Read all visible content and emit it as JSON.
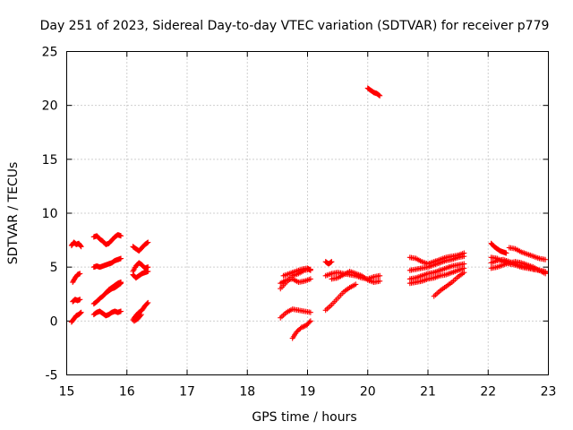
{
  "chart_data": {
    "type": "scatter",
    "title": "Day 251 of 2023, Sidereal Day-to-day VTEC variation (SDTVAR) for receiver p779",
    "xlabel": "GPS time / hours",
    "ylabel": "SDTVAR / TECUs",
    "xlim": [
      15,
      23
    ],
    "ylim": [
      -5,
      25
    ],
    "xticks": [
      "15",
      "16",
      "17",
      "18",
      "19",
      "20",
      "21",
      "22",
      "23"
    ],
    "yticks": [
      "-5",
      "0",
      "5",
      "10",
      "15",
      "20",
      "25"
    ],
    "grid": true,
    "marker": "plus",
    "color": "#ff0000",
    "segments": [
      {
        "x": [
          15.08,
          15.12,
          15.16,
          15.2,
          15.24
        ],
        "y": [
          7.0,
          7.3,
          7.1,
          7.2,
          6.9
        ]
      },
      {
        "x": [
          15.1,
          15.14,
          15.18,
          15.22
        ],
        "y": [
          3.6,
          4.0,
          4.3,
          4.4
        ]
      },
      {
        "x": [
          15.1,
          15.14,
          15.18,
          15.22
        ],
        "y": [
          1.8,
          2.0,
          1.9,
          2.0
        ]
      },
      {
        "x": [
          15.08,
          15.12,
          15.16,
          15.2,
          15.24
        ],
        "y": [
          -0.1,
          0.2,
          0.5,
          0.6,
          0.8
        ]
      },
      {
        "x": [
          15.45,
          15.5,
          15.55,
          15.6,
          15.65,
          15.7,
          15.75,
          15.8,
          15.85,
          15.9
        ],
        "y": [
          7.8,
          7.9,
          7.6,
          7.4,
          7.1,
          7.2,
          7.5,
          7.8,
          8.0,
          7.9
        ]
      },
      {
        "x": [
          15.45,
          15.5,
          15.55,
          15.6,
          15.65,
          15.7,
          15.75,
          15.8,
          15.85,
          15.9
        ],
        "y": [
          5.0,
          5.1,
          5.0,
          5.1,
          5.2,
          5.3,
          5.4,
          5.6,
          5.7,
          5.8
        ]
      },
      {
        "x": [
          15.45,
          15.5,
          15.55,
          15.6,
          15.65,
          15.7,
          15.75,
          15.8,
          15.85,
          15.9
        ],
        "y": [
          1.6,
          1.8,
          2.1,
          2.3,
          2.6,
          2.9,
          3.1,
          3.3,
          3.5,
          3.6
        ]
      },
      {
        "x": [
          15.65,
          15.7,
          15.75,
          15.8,
          15.85,
          15.9
        ],
        "y": [
          2.6,
          2.8,
          3.0,
          3.1,
          3.3,
          3.5
        ]
      },
      {
        "x": [
          15.45,
          15.5,
          15.55,
          15.6,
          15.65,
          15.7,
          15.75,
          15.8,
          15.85,
          15.9
        ],
        "y": [
          0.6,
          0.8,
          0.9,
          0.7,
          0.5,
          0.6,
          0.8,
          0.9,
          0.8,
          0.9
        ]
      },
      {
        "x": [
          16.1,
          16.15,
          16.2,
          16.25,
          16.3,
          16.35
        ],
        "y": [
          6.9,
          6.7,
          6.5,
          6.8,
          7.1,
          7.3
        ]
      },
      {
        "x": [
          16.1,
          16.15,
          16.2,
          16.25,
          16.3,
          16.35
        ],
        "y": [
          4.6,
          5.1,
          5.4,
          5.2,
          4.9,
          5.0
        ]
      },
      {
        "x": [
          16.1,
          16.15,
          16.2,
          16.25,
          16.3,
          16.35
        ],
        "y": [
          4.3,
          4.0,
          4.2,
          4.4,
          4.5,
          4.6
        ]
      },
      {
        "x": [
          16.1,
          16.15,
          16.2,
          16.25,
          16.3,
          16.35
        ],
        "y": [
          0.1,
          0.5,
          0.8,
          1.0,
          1.4,
          1.7
        ]
      },
      {
        "x": [
          16.12,
          16.18,
          16.24
        ],
        "y": [
          0.0,
          0.2,
          0.6
        ]
      },
      {
        "x": [
          18.55,
          18.65,
          18.75,
          18.85,
          18.95,
          19.05
        ],
        "y": [
          3.0,
          3.6,
          4.2,
          4.4,
          4.7,
          4.8
        ]
      },
      {
        "x": [
          18.55,
          18.65,
          18.75,
          18.85,
          18.95,
          19.05
        ],
        "y": [
          3.5,
          3.8,
          3.9,
          3.6,
          3.7,
          3.9
        ]
      },
      {
        "x": [
          18.6,
          18.7,
          18.8,
          18.9,
          19.0,
          19.05
        ],
        "y": [
          4.2,
          4.4,
          4.6,
          4.8,
          4.9,
          4.7
        ]
      },
      {
        "x": [
          18.55,
          18.65,
          18.75,
          18.85,
          18.95,
          19.05
        ],
        "y": [
          0.3,
          0.8,
          1.1,
          1.0,
          0.9,
          0.8
        ]
      },
      {
        "x": [
          18.75,
          18.82,
          18.9,
          18.98,
          19.05
        ],
        "y": [
          -1.6,
          -1.0,
          -0.6,
          -0.4,
          0.0
        ]
      },
      {
        "x": [
          19.3,
          19.35,
          19.4
        ],
        "y": [
          5.5,
          5.3,
          5.5
        ]
      },
      {
        "x": [
          19.3,
          19.4,
          19.5,
          19.6,
          19.7,
          19.8,
          19.9,
          20.0,
          20.1,
          20.2
        ],
        "y": [
          4.2,
          4.4,
          4.5,
          4.4,
          4.3,
          4.2,
          4.0,
          3.9,
          4.1,
          4.2
        ]
      },
      {
        "x": [
          19.4,
          19.5,
          19.6,
          19.7,
          19.8,
          19.9,
          20.0,
          20.1,
          20.2
        ],
        "y": [
          3.9,
          4.0,
          4.3,
          4.6,
          4.4,
          4.2,
          3.8,
          3.6,
          3.7
        ]
      },
      {
        "x": [
          19.3,
          19.4,
          19.5,
          19.6,
          19.7,
          19.8
        ],
        "y": [
          1.0,
          1.5,
          2.1,
          2.7,
          3.1,
          3.4
        ]
      },
      {
        "x": [
          20.0,
          20.05,
          20.1,
          20.15,
          20.2
        ],
        "y": [
          21.6,
          21.4,
          21.2,
          21.1,
          20.9
        ]
      },
      {
        "x": [
          20.7,
          20.8,
          20.9,
          21.0,
          21.1,
          21.2,
          21.3,
          21.4,
          21.5,
          21.6
        ],
        "y": [
          5.9,
          5.8,
          5.5,
          5.3,
          5.5,
          5.7,
          5.9,
          6.0,
          6.1,
          6.3
        ]
      },
      {
        "x": [
          20.7,
          20.8,
          20.9,
          21.0,
          21.1,
          21.2,
          21.3,
          21.4,
          21.5,
          21.6
        ],
        "y": [
          4.7,
          4.8,
          4.9,
          5.0,
          5.2,
          5.4,
          5.6,
          5.7,
          5.9,
          6.0
        ]
      },
      {
        "x": [
          20.7,
          20.8,
          20.9,
          21.0,
          21.1,
          21.2,
          21.3,
          21.4,
          21.5,
          21.6
        ],
        "y": [
          3.9,
          4.0,
          4.2,
          4.4,
          4.5,
          4.7,
          4.9,
          5.1,
          5.2,
          5.3
        ]
      },
      {
        "x": [
          20.7,
          20.8,
          20.9,
          21.0,
          21.1,
          21.2,
          21.3,
          21.4,
          21.5,
          21.6
        ],
        "y": [
          3.5,
          3.6,
          3.7,
          3.9,
          4.0,
          4.2,
          4.3,
          4.5,
          4.7,
          4.9
        ]
      },
      {
        "x": [
          21.1,
          21.2,
          21.3,
          21.4,
          21.5,
          21.6
        ],
        "y": [
          2.3,
          2.8,
          3.2,
          3.6,
          4.1,
          4.5
        ]
      },
      {
        "x": [
          22.05,
          22.1,
          22.15,
          22.2,
          22.25,
          22.3
        ],
        "y": [
          7.2,
          6.9,
          6.7,
          6.5,
          6.4,
          6.3
        ]
      },
      {
        "x": [
          22.35,
          22.45,
          22.55,
          22.65,
          22.75,
          22.85,
          22.95
        ],
        "y": [
          6.8,
          6.7,
          6.4,
          6.2,
          6.0,
          5.8,
          5.7
        ]
      },
      {
        "x": [
          22.05,
          22.15,
          22.25,
          22.35,
          22.45,
          22.55,
          22.65,
          22.75,
          22.85,
          22.95
        ],
        "y": [
          5.9,
          5.8,
          5.5,
          5.3,
          5.2,
          5.0,
          4.9,
          4.8,
          4.7,
          4.6
        ]
      },
      {
        "x": [
          22.05,
          22.15,
          22.25,
          22.35,
          22.45,
          22.55,
          22.65,
          22.75,
          22.85,
          22.95
        ],
        "y": [
          5.4,
          5.6,
          5.7,
          5.5,
          5.3,
          5.1,
          5.0,
          4.8,
          4.7,
          4.5
        ]
      },
      {
        "x": [
          22.05,
          22.15,
          22.25,
          22.35,
          22.45,
          22.55,
          22.65,
          22.75,
          22.85,
          22.95
        ],
        "y": [
          4.9,
          5.0,
          5.2,
          5.4,
          5.5,
          5.4,
          5.2,
          5.0,
          4.7,
          4.4
        ]
      }
    ]
  }
}
